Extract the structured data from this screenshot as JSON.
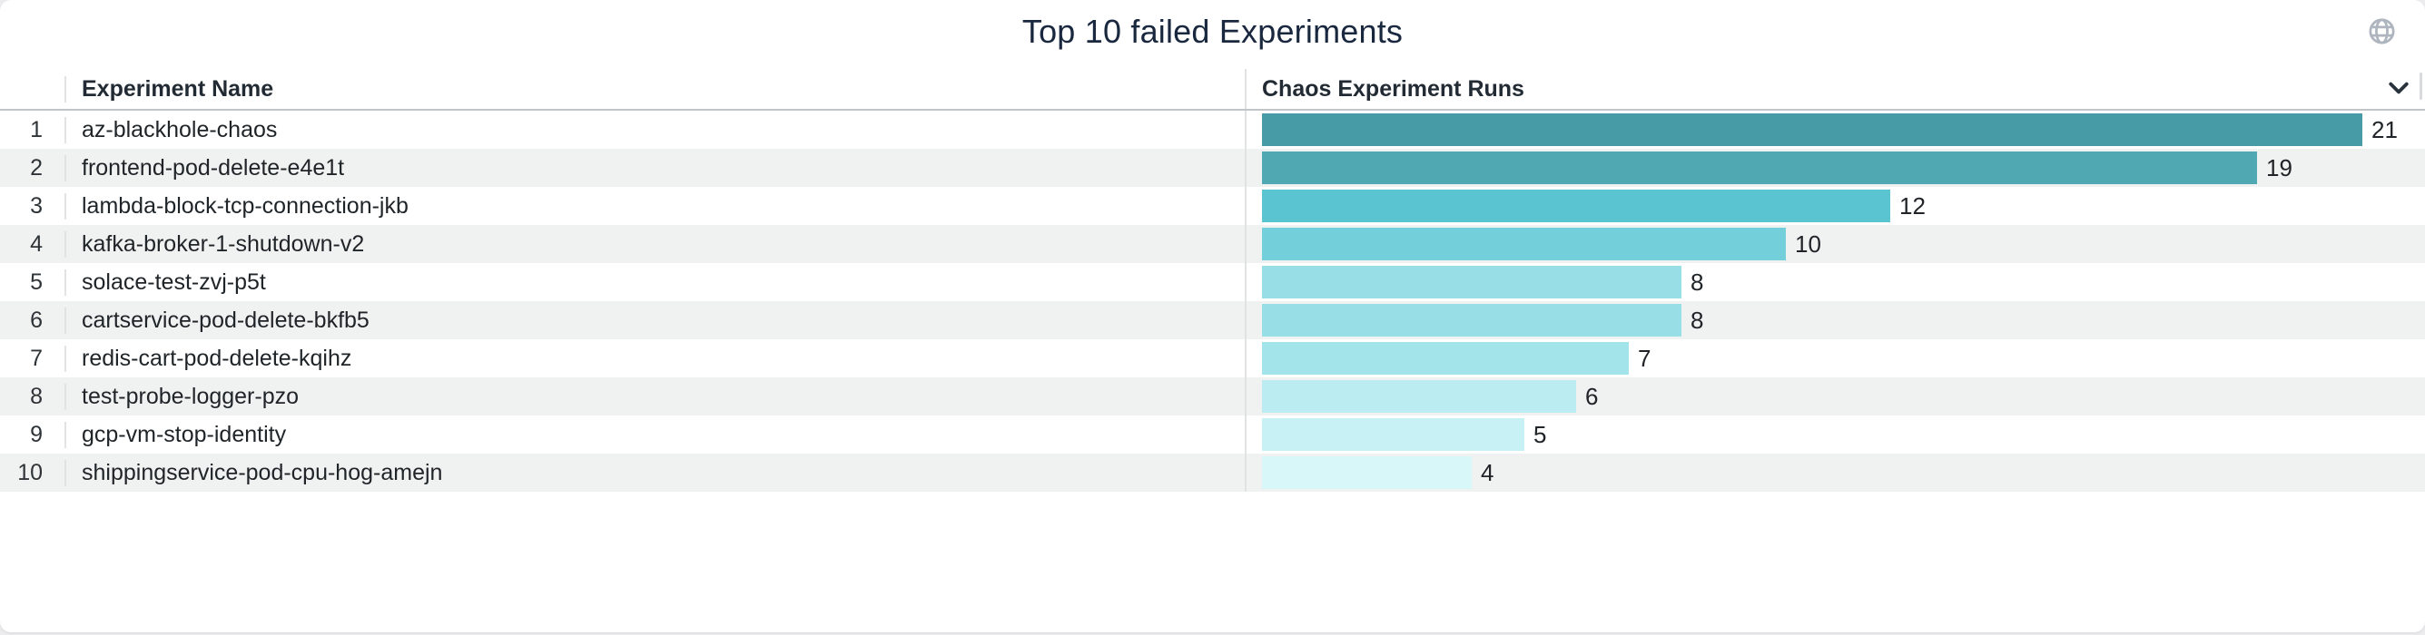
{
  "title": "Top 10 failed Experiments",
  "header": {
    "columns": [
      "Experiment Name",
      "Chaos Experiment Runs"
    ]
  },
  "icons": {
    "globe": "globe-icon",
    "sort_chevron": "chevron-down-icon"
  },
  "colors": {
    "title_text": "#19283e",
    "globe_icon": "#aeb5bf",
    "chevron_icon": "#28323c",
    "row_alt_background": "#f0f1f1",
    "divider": "#e0e2e3",
    "header_underline": "#c2c5c7"
  },
  "chart_data": {
    "type": "bar",
    "orientation": "horizontal",
    "title": "Top 10 failed Experiments",
    "xlabel": "Chaos Experiment Runs",
    "ylabel": "Experiment Name",
    "xlim": [
      0,
      21
    ],
    "grid": false,
    "legend": false,
    "ranks": [
      1,
      2,
      3,
      4,
      5,
      6,
      7,
      8,
      9,
      10
    ],
    "categories": [
      "az-blackhole-chaos",
      "frontend-pod-delete-e4e1t",
      "lambda-block-tcp-connection-jkb",
      "kafka-broker-1-shutdown-v2",
      "solace-test-zvj-p5t",
      "cartservice-pod-delete-bkfb5",
      "redis-cart-pod-delete-kqihz",
      "test-probe-logger-pzo",
      "gcp-vm-stop-identity",
      "shippingservice-pod-cpu-hog-amejn"
    ],
    "values": [
      21,
      19,
      12,
      10,
      8,
      8,
      7,
      6,
      5,
      4
    ],
    "bar_colors": [
      "#479ba6",
      "#4fa8b2",
      "#5ac5d1",
      "#73cfda",
      "#97dee7",
      "#97dee7",
      "#a3e4eb",
      "#baecf1",
      "#c7f1f5",
      "#d7f7f9"
    ]
  }
}
